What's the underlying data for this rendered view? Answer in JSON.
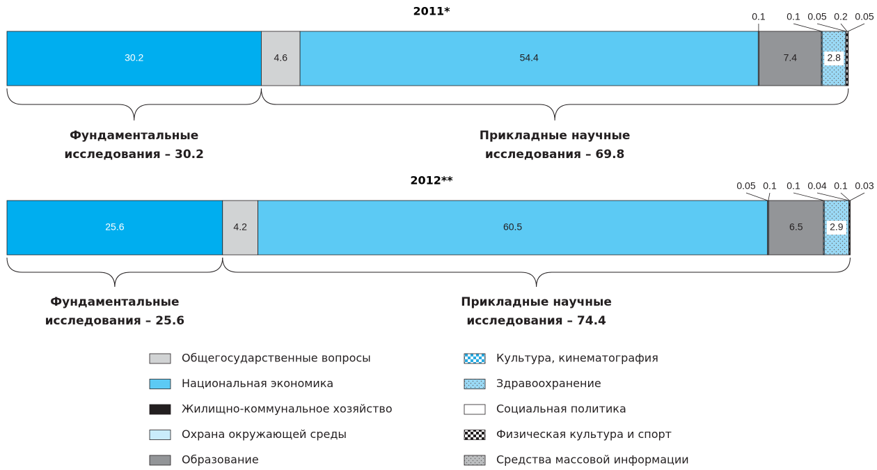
{
  "chart_data": {
    "type": "bar",
    "orientation": "horizontal",
    "stacked": true,
    "categories": [
      "2011*",
      "2012**"
    ],
    "xlim": [
      0,
      100
    ],
    "series": [
      {
        "color": "#00aeef",
        "values": [
          30.2,
          25.6
        ]
      },
      {
        "name": "Общегосударственные вопросы",
        "color": "#d1d3d4",
        "values": [
          4.6,
          4.2
        ]
      },
      {
        "name": "Национальная экономика",
        "color": "#5ccaf4",
        "values": [
          54.4,
          60.5
        ]
      },
      {
        "name": "Жилищно-коммунальное хозяйство",
        "color": "#231f20",
        "values": [
          null,
          0.05
        ]
      },
      {
        "name": "Охрана окружающей среды",
        "color": "#c9ecfb",
        "values": [
          0.1,
          0.1
        ]
      },
      {
        "name": "Образование",
        "color": "#939598",
        "values": [
          7.4,
          6.5
        ]
      },
      {
        "name": "Культура, кинематография",
        "color": "#29abe2",
        "pattern": "checker",
        "values": [
          0.1,
          0.1
        ]
      },
      {
        "name": "Здравоохранение",
        "color": "#9ad9f5",
        "pattern": "dots",
        "values": [
          2.8,
          2.9
        ]
      },
      {
        "name": "Социальная политика",
        "color": "#ffffff",
        "values": [
          0.05,
          0.04
        ]
      },
      {
        "name": "Физическая культура и спорт",
        "color": "#231f20",
        "pattern": "checker",
        "values": [
          0.2,
          0.1
        ]
      },
      {
        "name": "Средства массовой информации",
        "color": "#bcbec0",
        "pattern": "dots",
        "values": [
          0.05,
          0.03
        ]
      }
    ],
    "brace_labels": [
      [
        [
          "Фундаментальные",
          "исследования – 30.2"
        ],
        [
          "Прикладные научные",
          "исследования – 69.8"
        ]
      ],
      [
        [
          "Фундаментальные",
          "исследования – 25.6"
        ],
        [
          "Прикладные научные",
          "исследования – 74.4"
        ]
      ]
    ]
  }
}
